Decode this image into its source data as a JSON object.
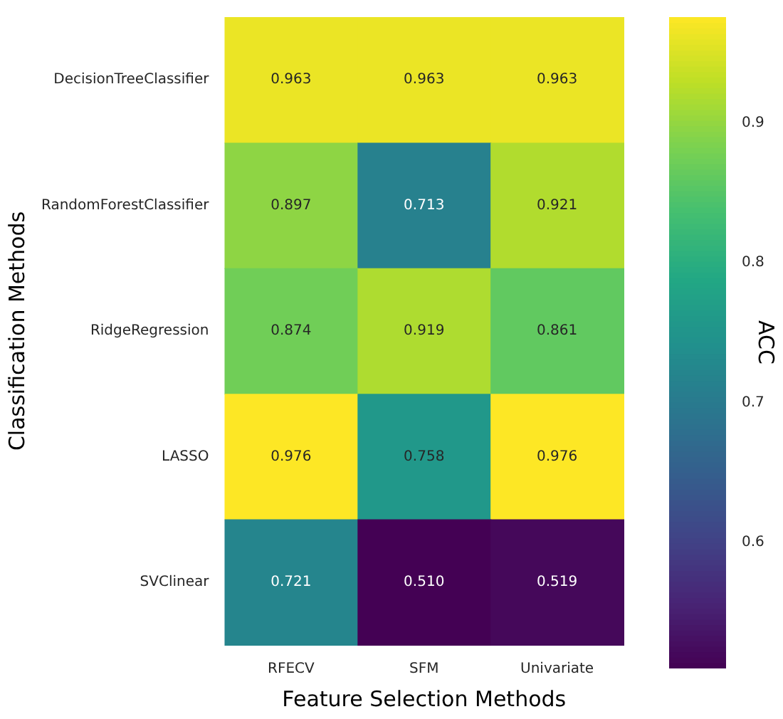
{
  "chart_data": {
    "type": "heatmap",
    "xlabel": "Feature Selection Methods",
    "ylabel": "Classification Methods",
    "clabel": "ACC",
    "categories": [
      "RFECV",
      "SFM",
      "Univariate"
    ],
    "y_categories": [
      "DecisionTreeClassifier",
      "RandomForestClassifier",
      "RidgeRegression",
      "LASSO",
      "SVClinear"
    ],
    "cells": [
      [
        0.963,
        0.963,
        0.963
      ],
      [
        0.897,
        0.713,
        0.921
      ],
      [
        0.874,
        0.919,
        0.861
      ],
      [
        0.976,
        0.758,
        0.976
      ],
      [
        0.721,
        0.51,
        0.519
      ]
    ],
    "cell_labels": [
      [
        "0.963",
        "0.963",
        "0.963"
      ],
      [
        "0.897",
        "0.713",
        "0.921"
      ],
      [
        "0.874",
        "0.919",
        "0.861"
      ],
      [
        "0.976",
        "0.758",
        "0.976"
      ],
      [
        "0.721",
        "0.510",
        "0.519"
      ]
    ],
    "clim": [
      0.51,
      0.976
    ],
    "cticks": [
      0.6,
      0.7,
      0.8,
      0.9
    ]
  }
}
